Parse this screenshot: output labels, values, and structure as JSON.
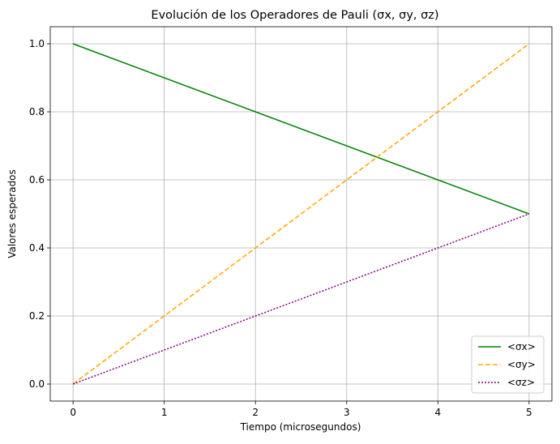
{
  "chart_data": {
    "type": "line",
    "title": "Evolución de los Operadores de Pauli (σx, σy, σz)",
    "xlabel": "Tiempo (microsegundos)",
    "ylabel": "Valores esperados",
    "xlim": [
      -0.25,
      5.25
    ],
    "ylim": [
      -0.05,
      1.05
    ],
    "xticks": [
      0,
      1,
      2,
      3,
      4,
      5
    ],
    "xtick_labels": [
      "0",
      "1",
      "2",
      "3",
      "4",
      "5"
    ],
    "yticks": [
      0.0,
      0.2,
      0.4,
      0.6,
      0.8,
      1.0
    ],
    "ytick_labels": [
      "0.0",
      "0.2",
      "0.4",
      "0.6",
      "0.8",
      "1.0"
    ],
    "grid": true,
    "legend_position": "lower-right",
    "series": [
      {
        "name": "<σx>",
        "color": "#008000",
        "style": "solid",
        "x": [
          0,
          5
        ],
        "y": [
          1.0,
          0.5
        ]
      },
      {
        "name": "<σy>",
        "color": "#ffa500",
        "style": "dashed",
        "x": [
          0,
          5
        ],
        "y": [
          0.0,
          1.0
        ]
      },
      {
        "name": "<σz>",
        "color": "#800080",
        "style": "dotted",
        "x": [
          0,
          5
        ],
        "y": [
          0.0,
          0.5
        ]
      }
    ]
  }
}
